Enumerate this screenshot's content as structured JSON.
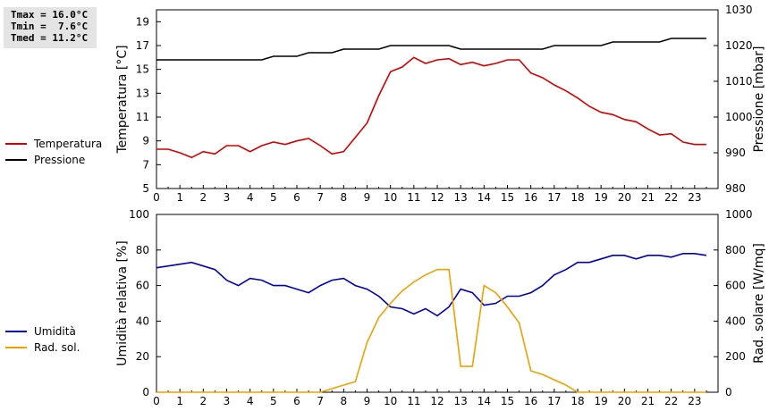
{
  "stats": {
    "tmax": "Tmax = 16.0°C",
    "tmin": "Tmin =  7.6°C",
    "tmed": "Tmed = 11.2°C"
  },
  "legend": {
    "top": [
      {
        "label": "Temperatura",
        "color": "#d40000"
      },
      {
        "label": "Pressione",
        "color": "#000000"
      }
    ],
    "bottom": [
      {
        "label": "Umidità",
        "color": "#0000b4"
      },
      {
        "label": "Rad. sol.",
        "color": "#f0a000"
      }
    ]
  },
  "chart_data": [
    {
      "type": "line",
      "x": [
        0,
        0.5,
        1,
        1.5,
        2,
        2.5,
        3,
        3.5,
        4,
        4.5,
        5,
        5.5,
        6,
        6.5,
        7,
        7.5,
        8,
        8.5,
        9,
        9.5,
        10,
        10.5,
        11,
        11.5,
        12,
        12.5,
        13,
        13.5,
        14,
        14.5,
        15,
        15.5,
        16,
        16.5,
        17,
        17.5,
        18,
        18.5,
        19,
        19.5,
        20,
        20.5,
        21,
        21.5,
        22,
        22.5,
        23,
        23.5
      ],
      "xlim": [
        0,
        24
      ],
      "xticks": [
        "0",
        "1",
        "2",
        "3",
        "4",
        "5",
        "6",
        "7",
        "8",
        "9",
        "10",
        "11",
        "12",
        "13",
        "14",
        "15",
        "16",
        "17",
        "18",
        "19",
        "20",
        "21",
        "22",
        "23"
      ],
      "ylabel": "Temperatura [°C]",
      "ylim": [
        5,
        20
      ],
      "yticks": [
        5,
        7,
        9,
        11,
        13,
        15,
        17,
        19
      ],
      "y2label": "Pressione [mbar]",
      "y2lim": [
        980,
        1030
      ],
      "y2ticks": [
        980,
        990,
        1000,
        1010,
        1020,
        1030
      ],
      "series": [
        {
          "name": "Temperatura",
          "color": "#d40000",
          "axis": "left",
          "values": [
            8.3,
            8.3,
            8.0,
            7.6,
            8.1,
            7.9,
            8.6,
            8.6,
            8.1,
            8.6,
            8.9,
            8.7,
            9.0,
            9.2,
            8.6,
            7.9,
            8.1,
            9.3,
            10.5,
            12.8,
            14.8,
            15.2,
            16.0,
            15.5,
            15.8,
            15.9,
            15.4,
            15.6,
            15.3,
            15.5,
            15.8,
            15.8,
            14.7,
            14.3,
            13.7,
            13.2,
            12.6,
            11.9,
            11.4,
            11.2,
            10.8,
            10.6,
            10.0,
            9.5,
            9.6,
            8.9,
            8.7,
            8.7
          ]
        },
        {
          "name": "Pressione",
          "color": "#000000",
          "axis": "right",
          "values": [
            1016,
            1016,
            1016,
            1016,
            1016,
            1016,
            1016,
            1016,
            1016,
            1016,
            1017,
            1017,
            1017,
            1018,
            1018,
            1018,
            1019,
            1019,
            1019,
            1019,
            1020,
            1020,
            1020,
            1020,
            1020,
            1020,
            1019,
            1019,
            1019,
            1019,
            1019,
            1019,
            1019,
            1019,
            1020,
            1020,
            1020,
            1020,
            1020,
            1021,
            1021,
            1021,
            1021,
            1021,
            1022,
            1022,
            1022,
            1022
          ]
        }
      ]
    },
    {
      "type": "line",
      "x": [
        0,
        0.5,
        1,
        1.5,
        2,
        2.5,
        3,
        3.5,
        4,
        4.5,
        5,
        5.5,
        6,
        6.5,
        7,
        7.5,
        8,
        8.5,
        9,
        9.5,
        10,
        10.5,
        11,
        11.5,
        12,
        12.5,
        13,
        13.5,
        14,
        14.5,
        15,
        15.5,
        16,
        16.5,
        17,
        17.5,
        18,
        18.5,
        19,
        19.5,
        20,
        20.5,
        21,
        21.5,
        22,
        22.5,
        23,
        23.5
      ],
      "xlim": [
        0,
        24
      ],
      "xticks": [
        "0",
        "1",
        "2",
        "3",
        "4",
        "5",
        "6",
        "7",
        "8",
        "9",
        "10",
        "11",
        "12",
        "13",
        "14",
        "15",
        "16",
        "17",
        "18",
        "19",
        "20",
        "21",
        "22",
        "23"
      ],
      "ylabel": "Umidità relativa [%]",
      "ylim": [
        0,
        100
      ],
      "yticks": [
        0,
        20,
        40,
        60,
        80,
        100
      ],
      "y2label": "Rad. solare [W/mq]",
      "y2lim": [
        0,
        1000
      ],
      "y2ticks": [
        0,
        200,
        400,
        600,
        800,
        1000
      ],
      "series": [
        {
          "name": "Umidità",
          "color": "#0000b4",
          "axis": "left",
          "values": [
            70,
            71,
            72,
            73,
            71,
            69,
            63,
            60,
            64,
            63,
            60,
            60,
            58,
            56,
            60,
            63,
            64,
            60,
            58,
            54,
            48,
            47,
            44,
            47,
            43,
            48,
            58,
            56,
            49,
            50,
            54,
            54,
            56,
            60,
            66,
            69,
            73,
            73,
            75,
            77,
            77,
            75,
            77,
            77,
            76,
            78,
            78,
            77
          ]
        },
        {
          "name": "Rad. sol.",
          "color": "#f0a000",
          "axis": "right",
          "values": [
            0,
            0,
            0,
            0,
            0,
            0,
            0,
            0,
            0,
            0,
            0,
            0,
            0,
            0,
            0,
            20,
            40,
            60,
            280,
            420,
            500,
            570,
            620,
            660,
            690,
            690,
            145,
            145,
            600,
            560,
            480,
            390,
            120,
            100,
            70,
            40,
            0,
            0,
            0,
            0,
            0,
            0,
            0,
            0,
            0,
            0,
            0,
            0
          ]
        }
      ]
    }
  ]
}
